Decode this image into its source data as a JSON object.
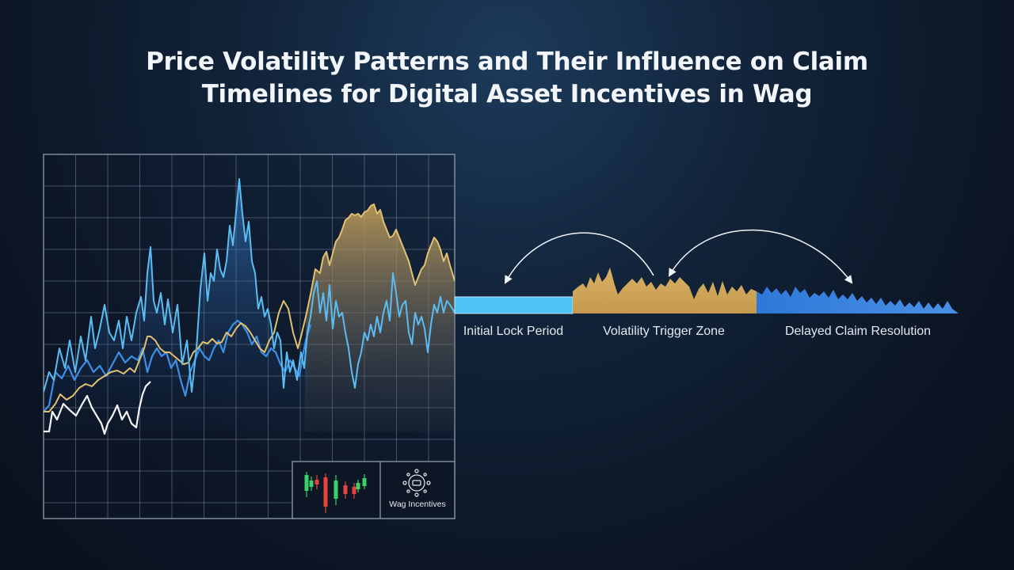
{
  "title": {
    "line1": "Price Volatility Patterns and Their Influence on Claim",
    "line2": "Timelines for Digital Asset Incentives in Wag"
  },
  "stages": [
    {
      "label": "Initial Lock Period",
      "color": "#4fc3f7"
    },
    {
      "label": "Volatility Trigger Zone",
      "color": "#d4aa5c"
    },
    {
      "label": "Delayed Claim Resolution",
      "color": "#3f86e0"
    }
  ],
  "brand": {
    "label": "Wag Incentives",
    "icon": "network-hub-icon"
  },
  "candlestick_icon": "candlestick-chart-icon",
  "colors": {
    "grid": "#8c9aae",
    "light_blue": "#5bbcf2",
    "blue": "#3d8fe6",
    "gold": "#e2c072",
    "white": "#f4f6fa"
  }
}
